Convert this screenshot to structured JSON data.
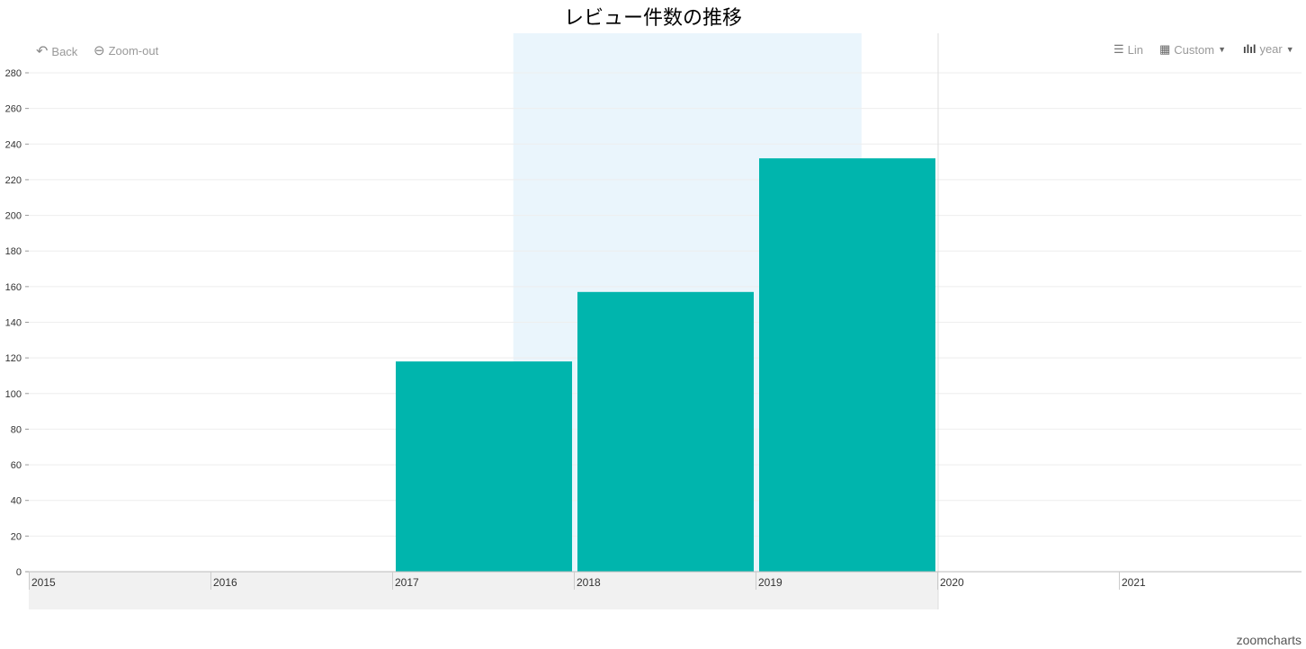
{
  "chart_data": {
    "type": "bar",
    "title": "レビュー件数の推移",
    "categories": [
      "2015",
      "2016",
      "2017",
      "2018",
      "2019",
      "2020",
      "2021"
    ],
    "values": [
      0,
      0,
      118,
      157,
      232,
      0,
      0
    ],
    "ylim": [
      0,
      280
    ],
    "yticks": [
      0,
      20,
      40,
      60,
      80,
      100,
      120,
      140,
      160,
      180,
      200,
      220,
      240,
      260,
      280
    ],
    "grid": true,
    "bar_color": "#00b5ad",
    "selection_range": [
      "2017-09",
      "2019-08"
    ],
    "selection_color": "#eaf5fc"
  },
  "toolbar": {
    "back_label": "Back",
    "zoomout_label": "Zoom-out",
    "scale_label": "Lin",
    "custom_label": "Custom",
    "unit_label": "year"
  },
  "logo": "zoomcharts"
}
